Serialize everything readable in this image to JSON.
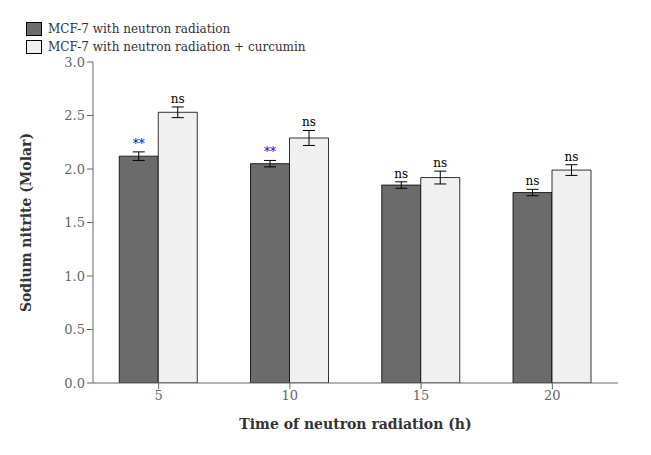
{
  "chart_data": {
    "type": "bar",
    "categories": [
      "5",
      "10",
      "15",
      "20"
    ],
    "series": [
      {
        "name": "MCF-7 with neutron radiation",
        "color": "#6b6b6b",
        "values": [
          2.12,
          2.05,
          1.85,
          1.78
        ],
        "errors": [
          0.04,
          0.03,
          0.03,
          0.03
        ],
        "annotations": [
          "**",
          "**",
          "ns",
          "ns"
        ],
        "annotation_colors": [
          "#0000bb",
          "#0000bb",
          "#000000",
          "#000000"
        ]
      },
      {
        "name": "MCF-7 with neutron radiation + curcumin",
        "color": "#f0f0f0",
        "values": [
          2.53,
          2.29,
          1.92,
          1.99
        ],
        "errors": [
          0.05,
          0.07,
          0.06,
          0.05
        ],
        "annotations": [
          "ns",
          "ns",
          "ns",
          "ns"
        ],
        "annotation_colors": [
          "#000000",
          "#000000",
          "#000000",
          "#000000"
        ]
      }
    ],
    "xlabel": "Time of neutron radiation (h)",
    "ylabel": "Sodium nitrite (Molar)",
    "ylim": [
      0,
      3
    ],
    "yticks": [
      {
        "value": 0,
        "label": "0.0"
      },
      0.5,
      {
        "value": 1,
        "label": "1.0"
      },
      1.5,
      {
        "value": 2,
        "label": "2.0"
      },
      2.5,
      {
        "value": 3,
        "label": "3.0"
      }
    ],
    "legend": "upper right",
    "grid": false
  }
}
